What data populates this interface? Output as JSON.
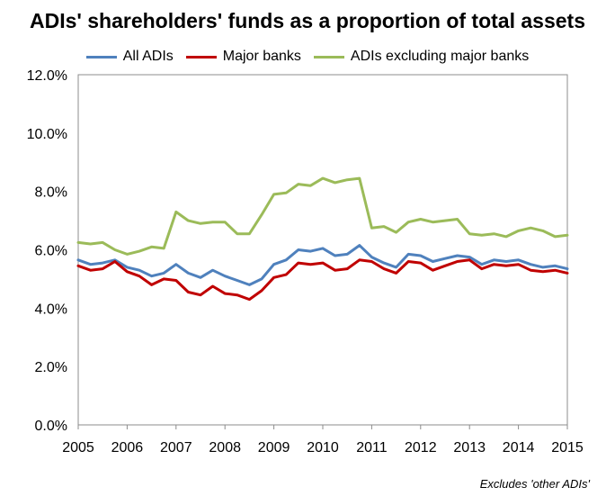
{
  "chart_data": {
    "type": "line",
    "title": "ADIs' shareholders' funds as a proportion of total assets",
    "xlabel": "",
    "ylabel": "",
    "footnote": "Excludes 'other ADIs'",
    "xlim": [
      2005,
      2015
    ],
    "ylim": [
      0,
      12
    ],
    "x_ticks": [
      2005,
      2006,
      2007,
      2008,
      2009,
      2010,
      2011,
      2012,
      2013,
      2014,
      2015
    ],
    "x_tick_labels": [
      "2005",
      "2006",
      "2007",
      "2008",
      "2009",
      "2010",
      "2011",
      "2012",
      "2013",
      "2014",
      "2015"
    ],
    "y_ticks": [
      0,
      2,
      4,
      6,
      8,
      10,
      12
    ],
    "y_tick_labels": [
      "0.0%",
      "2.0%",
      "4.0%",
      "6.0%",
      "8.0%",
      "10.0%",
      "12.0%"
    ],
    "legend_position": "top",
    "grid": false,
    "x": [
      2005.0,
      2005.25,
      2005.5,
      2005.75,
      2006.0,
      2006.25,
      2006.5,
      2006.75,
      2007.0,
      2007.25,
      2007.5,
      2007.75,
      2008.0,
      2008.25,
      2008.5,
      2008.75,
      2009.0,
      2009.25,
      2009.5,
      2009.75,
      2010.0,
      2010.25,
      2010.5,
      2010.75,
      2011.0,
      2011.25,
      2011.5,
      2011.75,
      2012.0,
      2012.25,
      2012.5,
      2012.75,
      2013.0,
      2013.25,
      2013.5,
      2013.75,
      2014.0,
      2014.25,
      2014.5,
      2014.75,
      2015.0
    ],
    "series": [
      {
        "name": "All ADIs",
        "color": "#4f81bd",
        "values": [
          5.65,
          5.5,
          5.55,
          5.65,
          5.4,
          5.3,
          5.1,
          5.2,
          5.5,
          5.2,
          5.05,
          5.3,
          5.1,
          4.95,
          4.8,
          5.0,
          5.5,
          5.65,
          6.0,
          5.95,
          6.05,
          5.8,
          5.85,
          6.15,
          5.75,
          5.55,
          5.4,
          5.85,
          5.8,
          5.6,
          5.7,
          5.8,
          5.75,
          5.5,
          5.65,
          5.6,
          5.65,
          5.5,
          5.4,
          5.45,
          5.35
        ]
      },
      {
        "name": "Major banks",
        "color": "#c00000",
        "values": [
          5.45,
          5.3,
          5.35,
          5.6,
          5.25,
          5.1,
          4.8,
          5.0,
          4.95,
          4.55,
          4.45,
          4.75,
          4.5,
          4.45,
          4.3,
          4.6,
          5.05,
          5.15,
          5.55,
          5.5,
          5.55,
          5.3,
          5.35,
          5.65,
          5.6,
          5.35,
          5.2,
          5.6,
          5.55,
          5.3,
          5.45,
          5.6,
          5.65,
          5.35,
          5.5,
          5.45,
          5.5,
          5.3,
          5.25,
          5.3,
          5.2
        ]
      },
      {
        "name": "ADIs excluding major banks",
        "color": "#9bbb59",
        "values": [
          6.25,
          6.2,
          6.25,
          6.0,
          5.85,
          5.95,
          6.1,
          6.05,
          7.3,
          7.0,
          6.9,
          6.95,
          6.95,
          6.55,
          6.55,
          7.2,
          7.9,
          7.95,
          8.25,
          8.2,
          8.45,
          8.3,
          8.4,
          8.45,
          6.75,
          6.8,
          6.6,
          6.95,
          7.05,
          6.95,
          7.0,
          7.05,
          6.55,
          6.5,
          6.55,
          6.45,
          6.65,
          6.75,
          6.65,
          6.45,
          6.5
        ]
      }
    ]
  }
}
